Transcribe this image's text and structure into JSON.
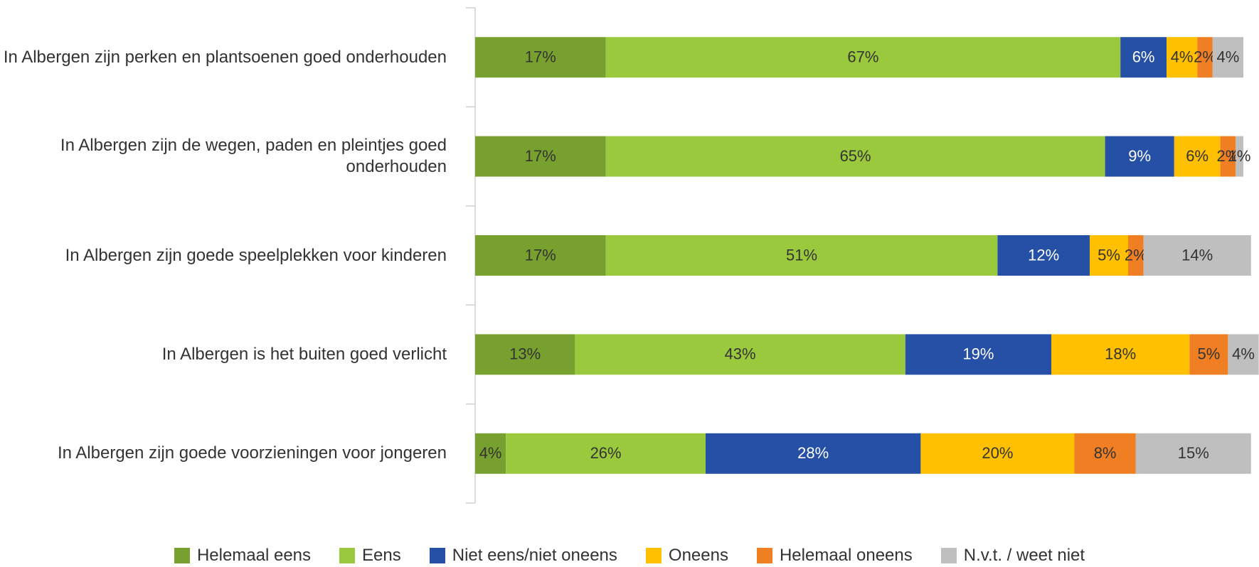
{
  "chart_data": {
    "type": "stacked_bar_horizontal",
    "categories": [
      "In Albergen zijn perken en plantsoenen goed onderhouden",
      "In Albergen zijn de wegen, paden en pleintjes goed onderhouden",
      "In Albergen zijn goede speelplekken voor kinderen",
      "In Albergen is het buiten goed verlicht",
      "In Albergen zijn goede voorzieningen voor jongeren"
    ],
    "xlim": [
      0,
      100
    ],
    "legend": "bottom",
    "series": [
      {
        "name": "Helemaal eens",
        "color": "#77a02e",
        "label_color": "#333333",
        "values": [
          17,
          17,
          17,
          13,
          4
        ],
        "value_labels": [
          "17%",
          "17%",
          "17%",
          "13%",
          "4%"
        ]
      },
      {
        "name": "Eens",
        "color": "#9bc93d",
        "label_color": "#333333",
        "values": [
          67,
          65,
          51,
          43,
          26
        ],
        "value_labels": [
          "67%",
          "65%",
          "51%",
          "43%",
          "26%"
        ]
      },
      {
        "name": "Niet eens/niet oneens",
        "color": "#2550a5",
        "label_color": "#ffffff",
        "values": [
          6,
          9,
          12,
          19,
          28
        ],
        "value_labels": [
          "6%",
          "9%",
          "12%",
          "19%",
          "28%"
        ]
      },
      {
        "name": "Oneens",
        "color": "#fec000",
        "label_color": "#333333",
        "values": [
          4,
          6,
          5,
          18,
          20
        ],
        "value_labels": [
          "4%",
          "6%",
          "5%",
          "18%",
          "20%"
        ]
      },
      {
        "name": "Helemaal oneens",
        "color": "#f07f24",
        "label_color": "#333333",
        "values": [
          2,
          2,
          2,
          5,
          8
        ],
        "value_labels": [
          "2%",
          "2%",
          "2%",
          "5%",
          "8%"
        ]
      },
      {
        "name": "N.v.t. / weet niet",
        "color": "#bfbfbf",
        "label_color": "#333333",
        "values": [
          4,
          1,
          14,
          4,
          15
        ],
        "value_labels": [
          "4%",
          "1%",
          "14%",
          "4%",
          "15%"
        ]
      }
    ]
  }
}
